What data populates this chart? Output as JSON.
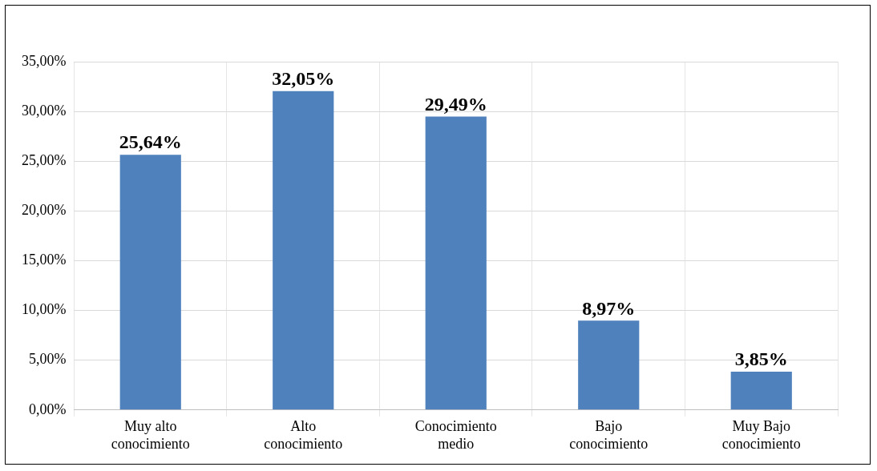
{
  "chart_data": {
    "type": "bar",
    "categories": [
      "Muy alto conocimiento",
      "Alto conocimiento",
      "Conocimiento medio",
      "Bajo conocimiento",
      "Muy Bajo conocimiento"
    ],
    "values": [
      25.64,
      32.05,
      29.49,
      8.97,
      3.85
    ],
    "color": "#4f81bd",
    "value_labels": [
      "25,64%",
      "32,05%",
      "29,49%",
      "8,97%",
      "3,85%"
    ],
    "ylim": [
      0,
      35
    ],
    "yticks": [
      {
        "value": 0,
        "label": "0,00%"
      },
      {
        "value": 5,
        "label": "5,00%"
      },
      {
        "value": 10,
        "label": "10,00%"
      },
      {
        "value": 15,
        "label": "15,00%"
      },
      {
        "value": 20,
        "label": "20,00%"
      },
      {
        "value": 25,
        "label": "25,00%"
      },
      {
        "value": 30,
        "label": "30,00%"
      },
      {
        "value": 35,
        "label": "35,00%"
      }
    ],
    "grid": true,
    "legend": false
  }
}
